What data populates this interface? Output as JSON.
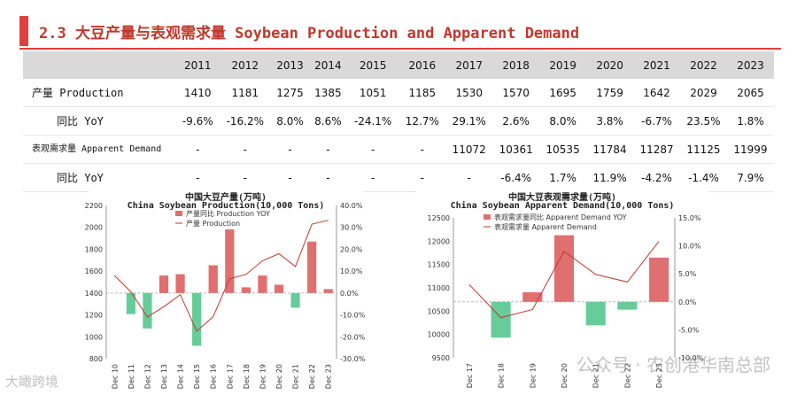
{
  "page": {
    "title": "2.3 大豆产量与表观需求量 Soybean Production and Apparent Demand",
    "watermark": "公众号 · 农创港华南总部",
    "logo": "大瞰跨境"
  },
  "table": {
    "years": [
      "2011",
      "2012",
      "2013",
      "2014",
      "2015",
      "2016",
      "2017",
      "2018",
      "2019",
      "2020",
      "2021",
      "2022",
      "2023"
    ],
    "rows": [
      {
        "label": "产量 Production",
        "values": [
          "1410",
          "1181",
          "1275",
          "1385",
          "1051",
          "1185",
          "1530",
          "1570",
          "1695",
          "1759",
          "1642",
          "2029",
          "2065"
        ]
      },
      {
        "label": "同比 YoY",
        "values": [
          "-9.6%",
          "-16.2%",
          "8.0%",
          "8.6%",
          "-24.1%",
          "12.7%",
          "29.1%",
          "2.6%",
          "8.0%",
          "3.8%",
          "-6.7%",
          "23.5%",
          "1.8%"
        ]
      },
      {
        "label": "表观需求量 Apparent Demand",
        "values": [
          "-",
          "-",
          "-",
          "-",
          "-",
          "-",
          "11072",
          "10361",
          "10535",
          "11784",
          "11287",
          "11125",
          "11999"
        ]
      },
      {
        "label": "同比 YoY",
        "values": [
          "-",
          "-",
          "-",
          "-",
          "-",
          "-",
          "-",
          "-6.4%",
          "1.7%",
          "11.9%",
          "-4.2%",
          "-1.4%",
          "7.9%"
        ]
      }
    ]
  },
  "chart_data": [
    {
      "type": "bar",
      "title": "中国大豆产量(万吨)",
      "subtitle": "China Soybean Production(10,000 Tons)",
      "categories": [
        "Dec 10",
        "Dec 11",
        "Dec 12",
        "Dec 13",
        "Dec 14",
        "Dec 15",
        "Dec 16",
        "Dec 17",
        "Dec 18",
        "Dec 19",
        "Dec 20",
        "Dec 21",
        "Dec 22",
        "Dec 23"
      ],
      "series": [
        {
          "name": "产量同比 Production YOY",
          "type": "bar",
          "axis": "right",
          "values": [
            null,
            -9.6,
            -16.2,
            8.0,
            8.6,
            -24.1,
            12.7,
            29.1,
            2.6,
            8.0,
            3.8,
            -6.7,
            23.5,
            1.8
          ]
        },
        {
          "name": "产量 Production",
          "type": "line",
          "axis": "left",
          "values": [
            1560,
            1410,
            1181,
            1275,
            1385,
            1051,
            1185,
            1530,
            1570,
            1695,
            1759,
            1642,
            2029,
            2065
          ]
        }
      ],
      "ylim_left": [
        800,
        2200
      ],
      "yticks_left": [
        800,
        1000,
        1200,
        1400,
        1600,
        1800,
        2000,
        2200
      ],
      "ylim_right": [
        -30,
        40
      ],
      "yticks_right": [
        -30,
        -20,
        -10,
        0,
        10,
        20,
        30,
        40
      ],
      "ytick_labels_right": [
        "-30.0%",
        "-20.0%",
        "-10.0%",
        "0.0%",
        "10.0%",
        "20.0%",
        "30.0%",
        "40.0%"
      ],
      "bar_color": "#e07070",
      "neg_bar_color": "#66cc99",
      "line_color": "#c0392b",
      "legend": "top-left"
    },
    {
      "type": "bar",
      "title": "中国大豆表观需求量(万吨)",
      "subtitle": "China Soybean Apparent Demand(10,000 Tons)",
      "categories": [
        "Dec 17",
        "Dec 18",
        "Dec 19",
        "Dec 20",
        "Dec 21",
        "Dec 22",
        "Dec 23"
      ],
      "series": [
        {
          "name": "表观需求量同比 Apparent Demand YOY",
          "type": "bar",
          "axis": "right",
          "values": [
            null,
            -6.4,
            1.7,
            11.9,
            -4.2,
            -1.4,
            7.9
          ]
        },
        {
          "name": "表观需求量 Apparent Demand",
          "type": "line",
          "axis": "left",
          "values": [
            11072,
            10361,
            10535,
            11784,
            11287,
            11125,
            11999
          ]
        }
      ],
      "ylim_left": [
        9500,
        12500
      ],
      "yticks_left": [
        9500,
        10000,
        10500,
        11000,
        11500,
        12000,
        12500
      ],
      "ylim_right": [
        -10,
        15
      ],
      "yticks_right": [
        -10,
        -5,
        0,
        5,
        10,
        15
      ],
      "ytick_labels_right": [
        "-10.0%",
        "-5.0%",
        "0.0%",
        "5.0%",
        "10.0%",
        "15.0%"
      ],
      "bar_color": "#e07070",
      "neg_bar_color": "#66cc99",
      "line_color": "#c0392b",
      "legend": "top-left"
    }
  ]
}
